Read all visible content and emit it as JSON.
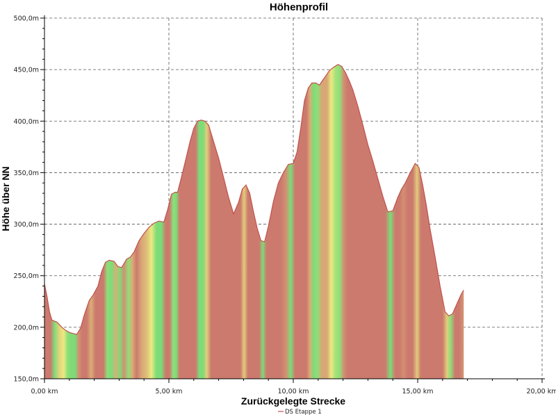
{
  "chart_data": {
    "type": "area",
    "title": "Höhenprofil",
    "xlabel": "Zurückgelegte Strecke",
    "ylabel": "Höhe über NN",
    "xlim": [
      0,
      20
    ],
    "ylim": [
      150,
      500
    ],
    "x_ticks": [
      0,
      5,
      10,
      15,
      20
    ],
    "x_tick_labels": [
      "0,00 km",
      "5,00 km",
      "10,00 km",
      "15,00 km",
      "20,00 km"
    ],
    "y_ticks": [
      150,
      200,
      250,
      300,
      350,
      400,
      450,
      500
    ],
    "y_tick_labels": [
      "150,0m",
      "200,0m",
      "250,0m",
      "300,0m",
      "350,0m",
      "400,0m",
      "450,0m",
      "500,0m"
    ],
    "grid": true,
    "legend_position": "bottom-center",
    "line_color": "#c0504d",
    "gradient_colors": {
      "flat": "#7ddc78",
      "medium": "#eaea80",
      "steep": "#cc7a6e"
    },
    "series": [
      {
        "name": "DS Etappe 1",
        "x": [
          0,
          0.1,
          0.2,
          0.3,
          0.5,
          0.7,
          0.85,
          1.0,
          1.15,
          1.3,
          1.45,
          1.6,
          1.8,
          1.95,
          2.15,
          2.3,
          2.45,
          2.6,
          2.8,
          2.95,
          3.1,
          3.3,
          3.45,
          3.6,
          3.8,
          4.0,
          4.2,
          4.4,
          4.6,
          4.8,
          4.95,
          5.1,
          5.25,
          5.35,
          5.5,
          5.7,
          5.85,
          6.0,
          6.15,
          6.3,
          6.45,
          6.6,
          6.8,
          7.0,
          7.2,
          7.4,
          7.6,
          7.8,
          7.95,
          8.1,
          8.25,
          8.4,
          8.55,
          8.7,
          8.85,
          9.0,
          9.2,
          9.4,
          9.6,
          9.8,
          10.0,
          10.15,
          10.3,
          10.45,
          10.6,
          10.75,
          10.9,
          11.05,
          11.25,
          11.45,
          11.6,
          11.8,
          11.95,
          12.1,
          12.25,
          12.4,
          12.6,
          12.8,
          13.0,
          13.2,
          13.4,
          13.6,
          13.8,
          14.0,
          14.2,
          14.35,
          14.5,
          14.7,
          14.9,
          15.05,
          15.2,
          15.35,
          15.5,
          15.7,
          15.9,
          16.1,
          16.25,
          16.4,
          16.6,
          16.75,
          16.85
        ],
        "values": [
          242,
          230,
          215,
          207,
          205,
          200,
          197,
          195,
          194,
          193,
          199,
          212,
          226,
          231,
          240,
          254,
          263,
          265,
          264,
          259,
          258,
          266,
          268,
          273,
          284,
          291,
          297,
          301,
          303,
          302,
          314,
          329,
          331,
          331,
          345,
          365,
          380,
          393,
          400,
          401,
          400,
          396,
          380,
          364,
          345,
          326,
          310,
          321,
          334,
          338,
          330,
          312,
          296,
          284,
          283,
          298,
          322,
          340,
          350,
          358,
          359,
          370,
          393,
          420,
          432,
          437,
          437,
          435,
          442,
          449,
          452,
          455,
          453,
          447,
          439,
          430,
          414,
          396,
          377,
          361,
          344,
          327,
          312,
          313,
          326,
          334,
          340,
          350,
          359,
          355,
          338,
          318,
          295,
          268,
          240,
          215,
          211,
          213,
          224,
          232,
          236
        ]
      }
    ]
  }
}
